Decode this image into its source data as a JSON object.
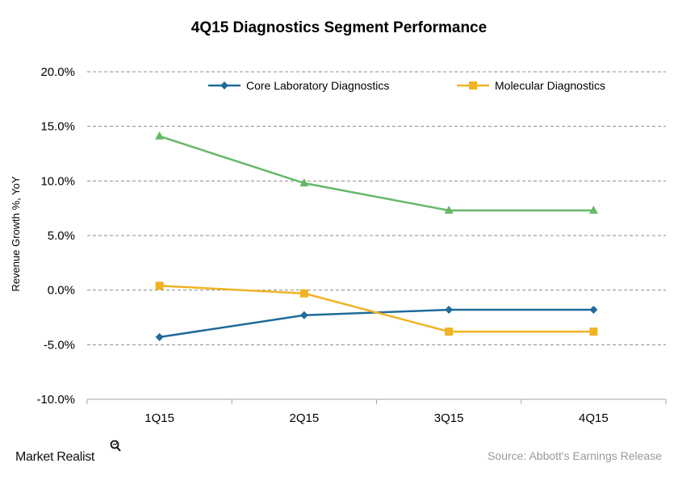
{
  "chart_data": {
    "type": "line",
    "title": "4Q15 Diagnostics  Segment  Performance",
    "ylabel": "Revenue Growth %, YoY",
    "xlabel": "",
    "categories": [
      "1Q15",
      "2Q15",
      "3Q15",
      "4Q15"
    ],
    "ylim": [
      -10,
      20
    ],
    "yticks": [
      -10,
      -5,
      0,
      5,
      10,
      15,
      20
    ],
    "ytick_labels": [
      "-10.0%",
      "-5.0%",
      "0.0%",
      "5.0%",
      "10.0%",
      "15.0%",
      "20.0%"
    ],
    "grid": true,
    "legend_position": "top",
    "series": [
      {
        "name": "Core Laboratory Diagnostics",
        "values": [
          -4.3,
          -2.3,
          -1.8,
          -1.8
        ],
        "color": "#1f6b9a",
        "marker": "diamond"
      },
      {
        "name": "Molecular Diagnostics",
        "values": [
          0.4,
          -0.3,
          -3.8,
          -3.8
        ],
        "color": "#f0b323",
        "marker": "square"
      },
      {
        "name": "",
        "values": [
          14.1,
          9.8,
          7.3,
          7.3
        ],
        "color": "#66b868",
        "marker": "triangle"
      }
    ]
  },
  "footer": {
    "brand": "Market Realist",
    "brand_icon": "magnifier-icon",
    "source": "Source: Abbott's Earnings Release"
  }
}
